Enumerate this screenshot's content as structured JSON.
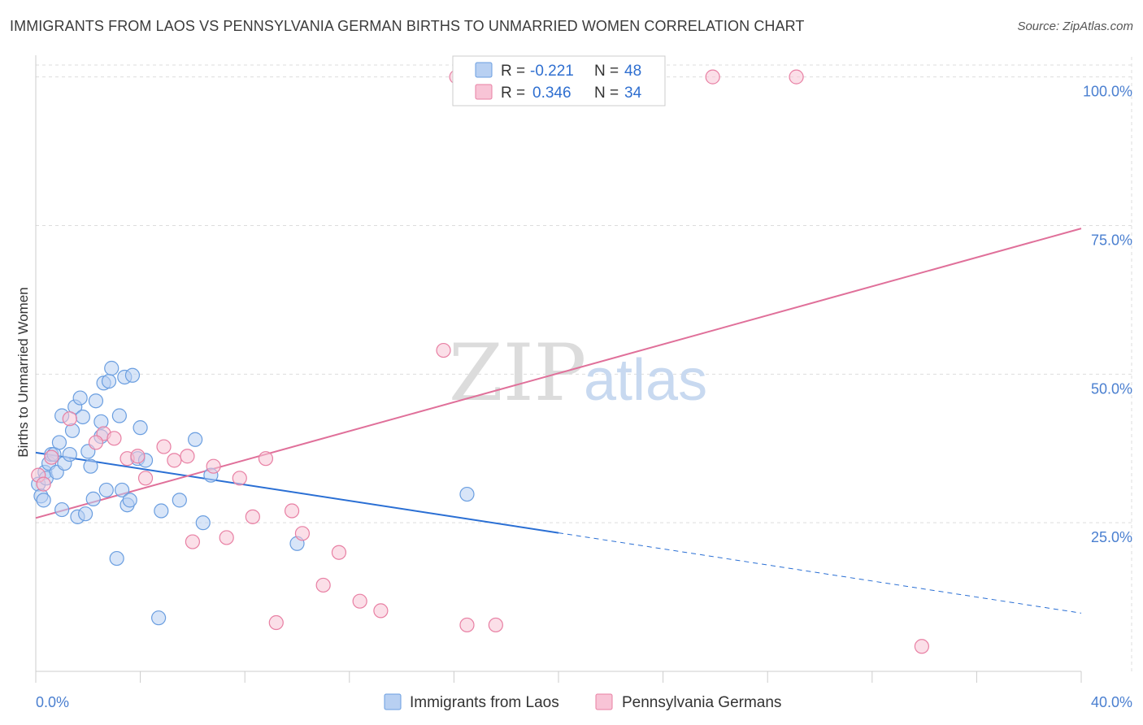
{
  "title": "IMMIGRANTS FROM LAOS VS PENNSYLVANIA GERMAN BIRTHS TO UNMARRIED WOMEN CORRELATION CHART",
  "source": "Source: ZipAtlas.com",
  "watermark": {
    "zip": "ZIP",
    "atlas": "atlas"
  },
  "colors": {
    "blue_fill": "#b8d0f2",
    "blue_stroke": "#6a9ee0",
    "blue_line": "#2a6fd4",
    "pink_fill": "#f8c4d6",
    "pink_stroke": "#e87fa3",
    "pink_line": "#e0709a",
    "grid": "#dddddd",
    "axis_label": "#4a7fd0"
  },
  "legend": {
    "items": [
      {
        "r_label": "R =",
        "r_value": "-0.221",
        "n_label": "N =",
        "n_value": "48"
      },
      {
        "r_label": "R =",
        "r_value": "0.346",
        "n_label": "N =",
        "n_value": "34"
      }
    ]
  },
  "bottom_legend": [
    "Immigrants from Laos",
    "Pennsylvania Germans"
  ],
  "chart_data": {
    "type": "scatter",
    "title": "IMMIGRANTS FROM LAOS VS PENNSYLVANIA GERMAN BIRTHS TO UNMARRIED WOMEN CORRELATION CHART",
    "xlabel": "",
    "ylabel": "Births to Unmarried Women",
    "xlim": [
      0,
      40
    ],
    "ylim": [
      0,
      102
    ],
    "x_tick_labels": [
      "0.0%",
      "40.0%"
    ],
    "y_ticks": [
      25,
      50,
      75,
      100
    ],
    "y_tick_labels": [
      "25.0%",
      "50.0%",
      "75.0%",
      "100.0%"
    ],
    "grid": true,
    "legend_position": "top-center",
    "series": [
      {
        "name": "Immigrants from Laos",
        "r": -0.221,
        "n": 48,
        "trend": {
          "x0": 0,
          "y0": 36.8,
          "x1": 20,
          "y1": 23.3,
          "dash_to_x": 40,
          "dash_to_y": 9.8
        },
        "points": [
          [
            0.1,
            31.5
          ],
          [
            0.2,
            29.5
          ],
          [
            0.3,
            28.8
          ],
          [
            0.35,
            33.5
          ],
          [
            0.4,
            32.5
          ],
          [
            0.5,
            35
          ],
          [
            0.6,
            36.5
          ],
          [
            0.7,
            36.5
          ],
          [
            0.8,
            33.5
          ],
          [
            0.9,
            38.5
          ],
          [
            1.0,
            27.2
          ],
          [
            1.0,
            43.0
          ],
          [
            1.1,
            35.0
          ],
          [
            1.3,
            36.5
          ],
          [
            1.4,
            40.5
          ],
          [
            1.5,
            44.5
          ],
          [
            1.6,
            26.0
          ],
          [
            1.7,
            46.0
          ],
          [
            1.8,
            42.8
          ],
          [
            1.9,
            26.5
          ],
          [
            2.0,
            37.0
          ],
          [
            2.1,
            34.5
          ],
          [
            2.2,
            29.0
          ],
          [
            2.3,
            45.5
          ],
          [
            2.5,
            39.5
          ],
          [
            2.5,
            42.0
          ],
          [
            2.6,
            48.5
          ],
          [
            2.7,
            30.5
          ],
          [
            2.8,
            48.8
          ],
          [
            2.9,
            51.0
          ],
          [
            3.1,
            19.0
          ],
          [
            3.2,
            43.0
          ],
          [
            3.3,
            30.5
          ],
          [
            3.4,
            49.5
          ],
          [
            3.5,
            28.0
          ],
          [
            3.6,
            28.8
          ],
          [
            3.7,
            49.8
          ],
          [
            3.9,
            35.8
          ],
          [
            4.0,
            41.0
          ],
          [
            4.2,
            35.5
          ],
          [
            4.7,
            9.0
          ],
          [
            4.8,
            27.0
          ],
          [
            5.5,
            28.8
          ],
          [
            6.1,
            39.0
          ],
          [
            6.4,
            25.0
          ],
          [
            6.7,
            33.0
          ],
          [
            10.0,
            21.5
          ],
          [
            16.5,
            29.8
          ]
        ]
      },
      {
        "name": "Pennsylvania Germans",
        "r": 0.346,
        "n": 34,
        "trend": {
          "x0": 0,
          "y0": 25.8,
          "x1": 40,
          "y1": 74.5
        },
        "points": [
          [
            0.1,
            33.0
          ],
          [
            0.3,
            31.5
          ],
          [
            0.6,
            36.0
          ],
          [
            1.3,
            42.5
          ],
          [
            2.6,
            40.0
          ],
          [
            2.3,
            38.5
          ],
          [
            3.0,
            39.2
          ],
          [
            3.5,
            35.8
          ],
          [
            3.9,
            36.2
          ],
          [
            4.2,
            32.5
          ],
          [
            4.9,
            37.8
          ],
          [
            5.3,
            35.5
          ],
          [
            5.8,
            36.2
          ],
          [
            6.0,
            21.8
          ],
          [
            6.8,
            34.5
          ],
          [
            7.3,
            22.5
          ],
          [
            7.8,
            32.5
          ],
          [
            8.3,
            26.0
          ],
          [
            8.8,
            35.8
          ],
          [
            9.2,
            8.2
          ],
          [
            9.8,
            27.0
          ],
          [
            10.2,
            23.2
          ],
          [
            11.0,
            14.5
          ],
          [
            11.6,
            20.0
          ],
          [
            12.4,
            11.8
          ],
          [
            13.2,
            10.2
          ],
          [
            15.6,
            54.0
          ],
          [
            16.1,
            100.0
          ],
          [
            16.5,
            7.8
          ],
          [
            17.6,
            7.8
          ],
          [
            22.0,
            100.0
          ],
          [
            25.9,
            100.0
          ],
          [
            29.1,
            100.0
          ],
          [
            33.9,
            4.2
          ]
        ]
      }
    ]
  }
}
